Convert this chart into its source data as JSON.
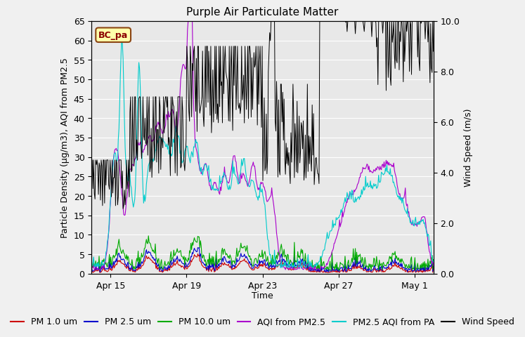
{
  "title": "Purple Air Particulate Matter",
  "xlabel": "Time",
  "ylabel_left": "Particle Density (μg/m3), AQI from PM2.5",
  "ylabel_right": "Wind Speed (m/s)",
  "ylim_left": [
    0,
    65
  ],
  "ylim_right": [
    0,
    10.0
  ],
  "yticks_left": [
    0,
    5,
    10,
    15,
    20,
    25,
    30,
    35,
    40,
    45,
    50,
    55,
    60,
    65
  ],
  "yticks_right": [
    0.0,
    2.0,
    4.0,
    6.0,
    8.0,
    10.0
  ],
  "xtick_labels": [
    "Apr 15",
    "Apr 19",
    "Apr 23",
    "Apr 27",
    "May 1"
  ],
  "xtick_positions": [
    1,
    5,
    9,
    13,
    17
  ],
  "xlim": [
    0,
    18
  ],
  "annotation_text": "BC_pa",
  "colors": {
    "pm1": "#cc0000",
    "pm25": "#0000cc",
    "pm10": "#00aa00",
    "aqi_pm25": "#aa00cc",
    "aqi_pa": "#00cccc",
    "wind": "#000000"
  },
  "legend_labels": [
    "PM 1.0 um",
    "PM 2.5 um",
    "PM 10.0 um",
    "AQI from PM2.5",
    "PM2.5 AQI from PA",
    "Wind Speed"
  ],
  "bg_color": "#f0f0f0",
  "plot_bg": "#e8e8e8",
  "title_fontsize": 11,
  "axis_fontsize": 9,
  "tick_fontsize": 9,
  "legend_fontsize": 9,
  "line_width": 0.8
}
